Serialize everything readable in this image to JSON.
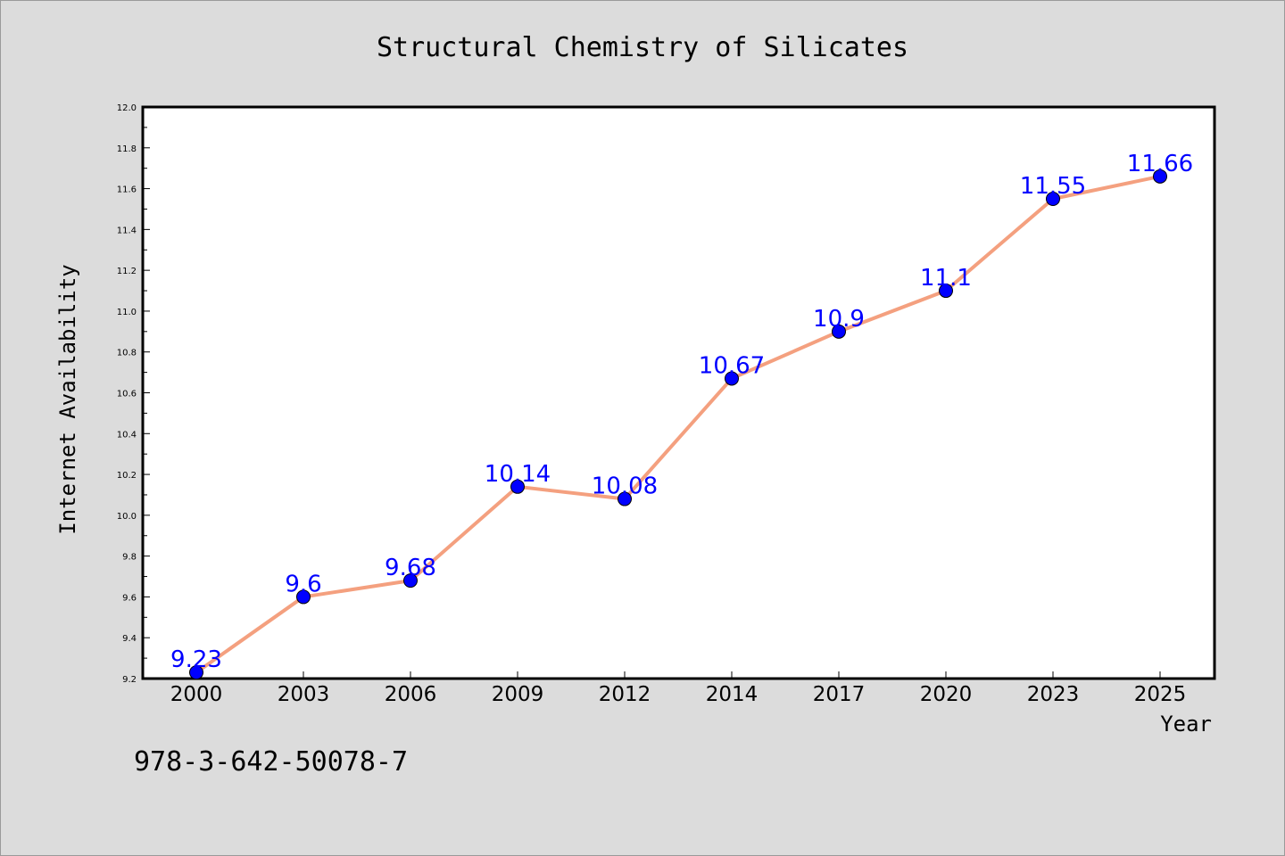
{
  "chart_data": {
    "type": "line",
    "title": "Structural Chemistry of Silicates",
    "xlabel": "Year",
    "ylabel": "Internet Availability",
    "categories": [
      "2000",
      "2003",
      "2006",
      "2009",
      "2012",
      "2014",
      "2017",
      "2020",
      "2023",
      "2025"
    ],
    "series": [
      {
        "values": [
          9.23,
          9.6,
          9.68,
          10.14,
          10.08,
          10.67,
          10.9,
          11.1,
          11.55,
          11.66
        ]
      }
    ],
    "data_labels": [
      "9.23",
      "9.6",
      "9.68",
      "10.14",
      "10.08",
      "10.67",
      "10.9",
      "11.1",
      "11.55",
      "11.66"
    ],
    "ylim": [
      9.2,
      12.0
    ],
    "yticks": [
      "9.2",
      "9.4",
      "9.6",
      "9.8",
      "10.0",
      "10.2",
      "10.4",
      "10.6",
      "10.8",
      "11.0",
      "11.2",
      "11.4",
      "11.6",
      "11.8",
      "12.0"
    ],
    "grid": false,
    "legend": "none",
    "line_color": "#f4a07f",
    "marker_color": "#0000ff",
    "label_color": "#0000ff"
  },
  "footer": {
    "isbn": "978-3-642-50078-7"
  }
}
